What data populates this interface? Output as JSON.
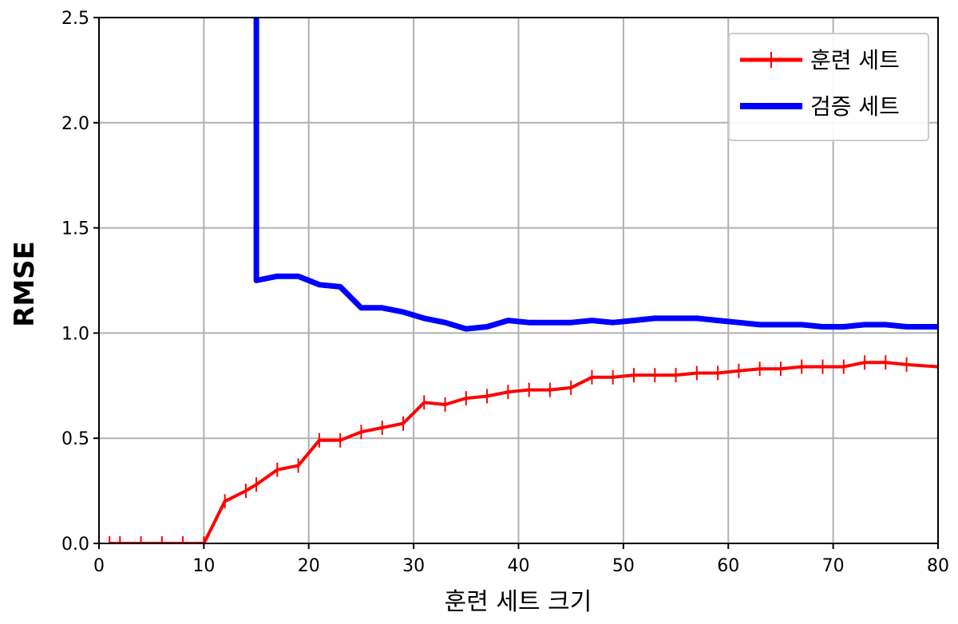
{
  "chart_data": {
    "type": "line",
    "title": "",
    "xlabel": "훈련 세트 크기",
    "ylabel": "RMSE",
    "xlim": [
      0,
      80
    ],
    "ylim": [
      0,
      2.5
    ],
    "x_ticks": [
      0,
      10,
      20,
      30,
      40,
      50,
      60,
      70,
      80
    ],
    "y_ticks": [
      0.0,
      0.5,
      1.0,
      1.5,
      2.0,
      2.5
    ],
    "x_tick_labels": [
      "0",
      "10",
      "20",
      "30",
      "40",
      "50",
      "60",
      "70",
      "80"
    ],
    "y_tick_labels": [
      "0.0",
      "0.5",
      "1.0",
      "1.5",
      "2.0",
      "2.5"
    ],
    "grid": true,
    "legend_position": "top-right",
    "series": [
      {
        "name": "훈련 세트",
        "color": "#ff0000",
        "marker": "plus",
        "x": [
          1,
          2,
          4,
          6,
          8,
          10,
          12,
          14,
          15,
          17,
          19,
          21,
          23,
          25,
          27,
          29,
          31,
          33,
          35,
          37,
          39,
          41,
          43,
          45,
          47,
          49,
          51,
          53,
          55,
          57,
          59,
          61,
          63,
          65,
          67,
          69,
          71,
          73,
          75,
          77,
          80
        ],
        "y": [
          0.0,
          0.0,
          0.0,
          0.0,
          0.0,
          0.0,
          0.2,
          0.25,
          0.28,
          0.35,
          0.37,
          0.49,
          0.49,
          0.53,
          0.55,
          0.57,
          0.67,
          0.66,
          0.69,
          0.7,
          0.72,
          0.73,
          0.73,
          0.74,
          0.79,
          0.79,
          0.8,
          0.8,
          0.8,
          0.81,
          0.81,
          0.82,
          0.83,
          0.83,
          0.84,
          0.84,
          0.84,
          0.86,
          0.86,
          0.85,
          0.84
        ]
      },
      {
        "name": "검증 세트",
        "color": "#0000ff",
        "marker": "none",
        "x": [
          15,
          15,
          17,
          19,
          21,
          23,
          25,
          27,
          29,
          31,
          33,
          35,
          37,
          39,
          41,
          43,
          45,
          47,
          49,
          51,
          53,
          55,
          57,
          59,
          61,
          63,
          65,
          67,
          69,
          71,
          73,
          75,
          77,
          80
        ],
        "y": [
          2.55,
          1.25,
          1.27,
          1.27,
          1.23,
          1.22,
          1.12,
          1.12,
          1.1,
          1.07,
          1.05,
          1.02,
          1.03,
          1.06,
          1.05,
          1.05,
          1.05,
          1.06,
          1.05,
          1.06,
          1.07,
          1.07,
          1.07,
          1.06,
          1.05,
          1.04,
          1.04,
          1.04,
          1.03,
          1.03,
          1.04,
          1.04,
          1.03,
          1.03
        ]
      }
    ]
  }
}
